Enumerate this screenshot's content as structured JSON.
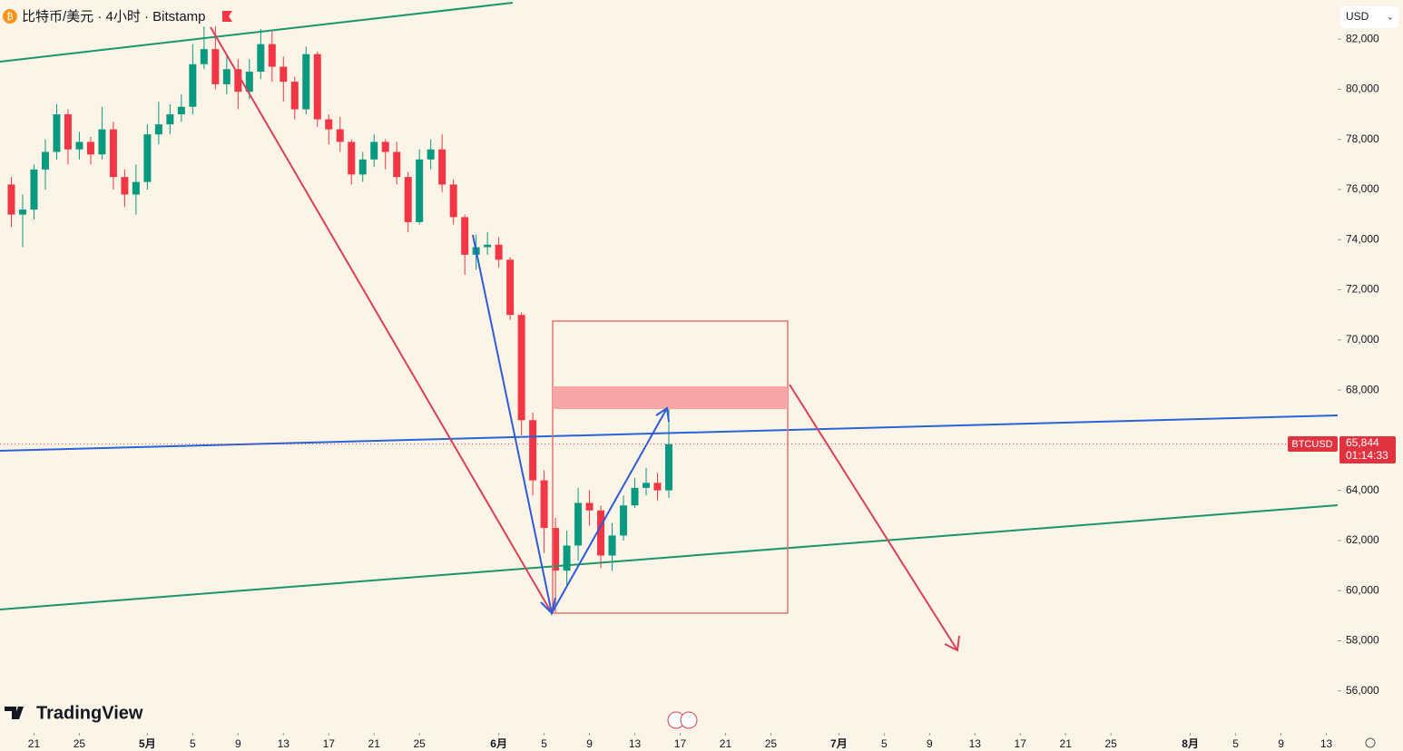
{
  "header": {
    "title": "比特币/美元 · 4小时 · Bitstamp",
    "currency": "USD",
    "brand": "TradingView"
  },
  "price_tag": {
    "symbol": "BTCUSD",
    "price": "65,844",
    "countdown": "01:14:33"
  },
  "chart_data": {
    "type": "candlestick",
    "up_color": "#089981",
    "down_color": "#f23645",
    "x": [
      "04-19",
      "04-20",
      "04-21",
      "04-22",
      "04-23",
      "04-24",
      "04-25",
      "04-26",
      "04-27",
      "04-28",
      "04-29",
      "04-30",
      "05-01",
      "05-02",
      "05-03",
      "05-04",
      "05-05",
      "05-06",
      "05-07",
      "05-08",
      "05-09",
      "05-10",
      "05-11",
      "05-12",
      "05-13",
      "05-14",
      "05-15",
      "05-16",
      "05-17",
      "05-18",
      "05-19",
      "05-20",
      "05-21",
      "05-22",
      "05-23",
      "05-24",
      "05-25",
      "05-26",
      "05-27",
      "05-28",
      "05-29",
      "05-30",
      "05-31",
      "06-01",
      "06-02",
      "06-03",
      "06-04",
      "06-05",
      "06-06",
      "06-07",
      "06-08",
      "06-09",
      "06-10",
      "06-11",
      "06-12",
      "06-13",
      "06-14",
      "06-15",
      "06-16"
    ],
    "open": [
      76200,
      75000,
      75200,
      76800,
      77500,
      79000,
      77600,
      77900,
      77400,
      78400,
      76500,
      75800,
      76300,
      78200,
      78600,
      79000,
      79300,
      81000,
      81600,
      80200,
      80800,
      79900,
      80700,
      81800,
      80900,
      80300,
      79200,
      81400,
      78800,
      78400,
      77900,
      76600,
      77200,
      77900,
      77500,
      76500,
      74700,
      77200,
      77600,
      76200,
      74900,
      73400,
      73700,
      73800,
      73200,
      71000,
      66800,
      64400,
      62500,
      60800,
      61800,
      63500,
      63200,
      61400,
      62200,
      63400,
      64100,
      64300,
      64000
    ],
    "high": [
      76500,
      75800,
      77000,
      78000,
      79400,
      79200,
      78300,
      78100,
      79300,
      78700,
      76800,
      77000,
      78600,
      79500,
      79400,
      79800,
      81800,
      82500,
      82500,
      81400,
      81200,
      81200,
      82400,
      82300,
      81300,
      80500,
      81700,
      81500,
      79000,
      78900,
      78000,
      77500,
      78200,
      78000,
      77900,
      76700,
      77600,
      78000,
      78200,
      76400,
      75000,
      74200,
      74300,
      74100,
      73300,
      71100,
      67100,
      64800,
      62900,
      62400,
      64100,
      64000,
      63400,
      62700,
      63800,
      64500,
      64900,
      64700,
      67300
    ],
    "low": [
      74500,
      73700,
      74800,
      76000,
      77200,
      77000,
      77200,
      77000,
      77200,
      76000,
      75300,
      75000,
      76000,
      77800,
      78200,
      78700,
      79000,
      80800,
      80000,
      79800,
      79200,
      79600,
      80400,
      80300,
      79500,
      78800,
      79000,
      78500,
      77800,
      77500,
      76200,
      76300,
      76900,
      76800,
      76200,
      74300,
      74600,
      76800,
      75900,
      74600,
      72600,
      72800,
      73400,
      72900,
      70800,
      66200,
      63800,
      61500,
      59100,
      60200,
      61200,
      62600,
      60900,
      60800,
      62000,
      63300,
      63800,
      63600,
      63700
    ],
    "close": [
      75000,
      75200,
      76800,
      77500,
      79000,
      77600,
      77900,
      77400,
      78400,
      76500,
      75800,
      76300,
      78200,
      78600,
      79000,
      79300,
      81000,
      81600,
      80200,
      80800,
      79900,
      80700,
      81800,
      80900,
      80300,
      79200,
      81400,
      78800,
      78400,
      77900,
      76600,
      77200,
      77900,
      77500,
      76500,
      74700,
      77200,
      77600,
      76200,
      74900,
      73400,
      73700,
      73800,
      73200,
      71000,
      66800,
      64400,
      62500,
      60800,
      61800,
      63500,
      63200,
      61400,
      62200,
      63400,
      64100,
      64300,
      64000,
      65844
    ],
    "xlim": [
      "04-18",
      "08-14"
    ],
    "xticks": [
      {
        "value": "04-21",
        "label": "21"
      },
      {
        "value": "04-25",
        "label": "25"
      },
      {
        "value": "05-01",
        "label": "5月"
      },
      {
        "value": "05-05",
        "label": "5"
      },
      {
        "value": "05-09",
        "label": "9"
      },
      {
        "value": "05-13",
        "label": "13"
      },
      {
        "value": "05-17",
        "label": "17"
      },
      {
        "value": "05-21",
        "label": "21"
      },
      {
        "value": "05-25",
        "label": "25"
      },
      {
        "value": "06-01",
        "label": "6月"
      },
      {
        "value": "06-05",
        "label": "5"
      },
      {
        "value": "06-09",
        "label": "9"
      },
      {
        "value": "06-13",
        "label": "13"
      },
      {
        "value": "06-17",
        "label": "17"
      },
      {
        "value": "06-21",
        "label": "21"
      },
      {
        "value": "06-25",
        "label": "25"
      },
      {
        "value": "07-01",
        "label": "7月"
      },
      {
        "value": "07-05",
        "label": "5"
      },
      {
        "value": "07-09",
        "label": "9"
      },
      {
        "value": "07-13",
        "label": "13"
      },
      {
        "value": "07-17",
        "label": "17"
      },
      {
        "value": "07-21",
        "label": "21"
      },
      {
        "value": "07-25",
        "label": "25"
      },
      {
        "value": "08-01",
        "label": "8月"
      },
      {
        "value": "08-05",
        "label": "5"
      },
      {
        "value": "08-09",
        "label": "9"
      },
      {
        "value": "08-13",
        "label": "13"
      }
    ],
    "ylim": [
      54400,
      83560
    ],
    "yticks": [
      {
        "value": 56000,
        "label": "56,000"
      },
      {
        "value": 58000,
        "label": "58,000"
      },
      {
        "value": 60000,
        "label": "60,000"
      },
      {
        "value": 62000,
        "label": "62,000"
      },
      {
        "value": 64000,
        "label": "64,000"
      },
      {
        "value": 68000,
        "label": "68,000"
      },
      {
        "value": 70000,
        "label": "70,000"
      },
      {
        "value": 72000,
        "label": "72,000"
      },
      {
        "value": 74000,
        "label": "74,000"
      },
      {
        "value": 76000,
        "label": "76,000"
      },
      {
        "value": 78000,
        "label": "78,000"
      },
      {
        "value": 80000,
        "label": "80,000"
      },
      {
        "value": 82000,
        "label": "82,000"
      }
    ]
  }
}
